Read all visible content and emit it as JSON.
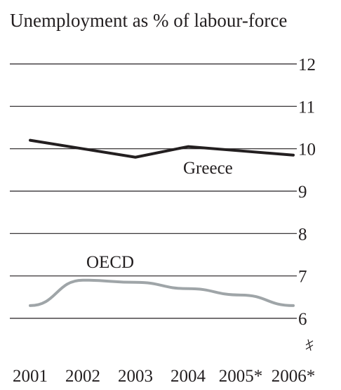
{
  "chart_data": {
    "type": "line",
    "title": "Unemployment as % of labour-force",
    "x": [
      "2001",
      "2002",
      "2003",
      "2004",
      "2005*",
      "2006*"
    ],
    "y_ticks": [
      "12",
      "11",
      "10",
      "9",
      "8",
      "7",
      "6"
    ],
    "ylim": [
      6,
      12
    ],
    "grid": true,
    "axis_break": true,
    "series": [
      {
        "name": "Greece",
        "values": [
          10.2,
          10.0,
          9.8,
          10.05,
          9.95,
          9.85
        ],
        "color": "#231f20"
      },
      {
        "name": "OECD",
        "values": [
          6.3,
          6.9,
          6.85,
          6.7,
          6.55,
          6.3
        ],
        "color": "#9fa5a8"
      }
    ]
  }
}
